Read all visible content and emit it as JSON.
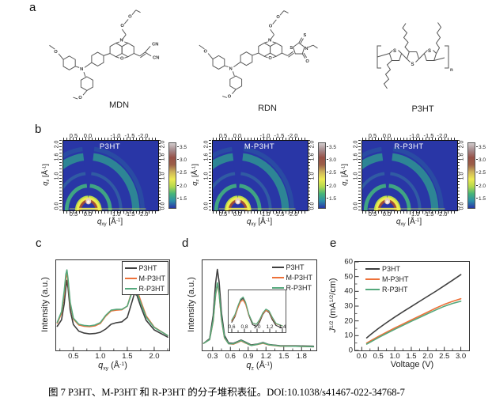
{
  "figure": {
    "panel_labels": [
      "a",
      "b",
      "c",
      "d",
      "e"
    ],
    "caption": "图 7 P3HT、M-P3HT 和 R-P3HT 的分子堆积表征。DOI:10.1038/s41467-022-34768-7"
  },
  "panel_a": {
    "structures": [
      {
        "name": "MDN",
        "atoms": [
          "O",
          "N",
          "O",
          "N",
          "O",
          "O",
          "O",
          "CN",
          "CN"
        ]
      },
      {
        "name": "RDN",
        "atoms": [
          "O",
          "N",
          "O",
          "N",
          "O",
          "O",
          "O",
          "S",
          "S",
          "N",
          "O"
        ]
      },
      {
        "name": "P3HT",
        "atoms": [
          "S",
          "S",
          "S"
        ],
        "repeat": "n"
      }
    ]
  },
  "panel_b": {
    "plots": [
      {
        "title": "P3HT"
      },
      {
        "title": "M-P3HT"
      },
      {
        "title": "R-P3HT"
      }
    ],
    "x_ticks": [
      "0.5",
      "0.0",
      "-1.0",
      "-1.5",
      "-2.0"
    ],
    "y_ticks": [
      "0.0",
      "1.0",
      "1.6",
      "2.0"
    ],
    "colorbar_ticks": [
      "3.5",
      "3.0",
      "2.5",
      "2.0",
      "1.5"
    ],
    "colorbar": {
      "stops": [
        "#2936a6",
        "#2d8fa8",
        "#46b578",
        "#b5d94d",
        "#eeea52",
        "#cdb35a",
        "#9c5f48",
        "#975046",
        "#a5898b",
        "#d2cbcb"
      ]
    },
    "x_axis": {
      "base": "q",
      "sub": "xy",
      "open": " [Å",
      "sup": "-1",
      "close": "]"
    },
    "y_axis": {
      "base": "q",
      "sub": "z",
      "open": " [Å",
      "sup": "-1",
      "close": "]"
    }
  },
  "chart_data": [
    {
      "id": "c",
      "type": "line",
      "ylabel": "Intensity (a.u.)",
      "xlabel_parts": {
        "base": "q",
        "sub": "xy",
        "open": " (Å",
        "sup": "-1",
        "close": ")"
      },
      "xlim": [
        0.18,
        2.28
      ],
      "ylim": [
        0,
        1.12
      ],
      "lw": 1.6,
      "x_ticks": [
        "0.5",
        "1.0",
        "1.5",
        "2.0"
      ],
      "x_minor": [
        0.25,
        0.75,
        1.25,
        1.75,
        2.25
      ],
      "x": [
        0.2,
        0.28,
        0.33,
        0.36,
        0.38,
        0.4,
        0.44,
        0.5,
        0.6,
        0.7,
        0.8,
        0.9,
        1.0,
        1.1,
        1.2,
        1.3,
        1.4,
        1.5,
        1.58,
        1.63,
        1.68,
        1.75,
        1.85,
        2.0,
        2.25
      ],
      "series": [
        {
          "name": "P3HT",
          "color": "#3f3f3f",
          "values": [
            0.3,
            0.38,
            0.58,
            0.78,
            0.87,
            0.78,
            0.5,
            0.32,
            0.24,
            0.215,
            0.205,
            0.21,
            0.225,
            0.265,
            0.325,
            0.345,
            0.355,
            0.41,
            0.585,
            0.7,
            0.685,
            0.545,
            0.375,
            0.255,
            0.165
          ]
        },
        {
          "name": "M-P3HT",
          "color": "#ed7139",
          "values": [
            0.34,
            0.46,
            0.7,
            0.9,
            0.96,
            0.86,
            0.58,
            0.39,
            0.315,
            0.3,
            0.295,
            0.305,
            0.335,
            0.425,
            0.49,
            0.5,
            0.505,
            0.55,
            0.72,
            0.785,
            0.755,
            0.615,
            0.43,
            0.29,
            0.185
          ]
        },
        {
          "name": "R-P3HT",
          "color": "#55a87c",
          "values": [
            0.35,
            0.48,
            0.74,
            0.95,
            1.0,
            0.89,
            0.6,
            0.4,
            0.325,
            0.31,
            0.305,
            0.315,
            0.345,
            0.435,
            0.5,
            0.51,
            0.51,
            0.55,
            0.705,
            0.755,
            0.725,
            0.59,
            0.415,
            0.285,
            0.185
          ]
        }
      ],
      "legend_pos": "top-right"
    },
    {
      "id": "d",
      "type": "line",
      "ylabel": "Intensity (a.u.)",
      "xlabel_parts": {
        "base": "q",
        "sub": "z",
        "open": " (Å",
        "sup": "-1",
        "close": ")"
      },
      "xlim": [
        0.13,
        2.05
      ],
      "ylim": [
        0,
        1.08
      ],
      "lw": 1.6,
      "x_ticks": [
        "0.3",
        "0.6",
        "0.9",
        "1.2",
        "1.5",
        "1.8"
      ],
      "x_minor": [
        0.45,
        0.75,
        1.05,
        1.35,
        1.65,
        1.95
      ],
      "x": [
        0.15,
        0.25,
        0.31,
        0.35,
        0.38,
        0.41,
        0.45,
        0.5,
        0.57,
        0.65,
        0.72,
        0.78,
        0.85,
        0.95,
        1.05,
        1.15,
        1.25,
        1.45,
        1.7,
        2.0
      ],
      "series": [
        {
          "name": "P3HT",
          "color": "#3f3f3f",
          "values": [
            0.085,
            0.14,
            0.42,
            0.8,
            0.97,
            0.82,
            0.45,
            0.18,
            0.09,
            0.085,
            0.105,
            0.125,
            0.1,
            0.065,
            0.075,
            0.095,
            0.07,
            0.055,
            0.055,
            0.05
          ]
        },
        {
          "name": "M-P3HT",
          "color": "#ed7139",
          "values": [
            0.085,
            0.13,
            0.35,
            0.66,
            0.8,
            0.68,
            0.37,
            0.15,
            0.08,
            0.075,
            0.095,
            0.115,
            0.09,
            0.06,
            0.07,
            0.085,
            0.065,
            0.05,
            0.05,
            0.045
          ]
        },
        {
          "name": "R-P3HT",
          "color": "#55a87c",
          "values": [
            0.085,
            0.13,
            0.36,
            0.67,
            0.81,
            0.69,
            0.38,
            0.155,
            0.08,
            0.08,
            0.1,
            0.12,
            0.095,
            0.06,
            0.072,
            0.09,
            0.068,
            0.052,
            0.05,
            0.045
          ]
        }
      ],
      "legend_pos": "top-right"
    },
    {
      "id": "d_inset",
      "type": "line",
      "xlim": [
        0.55,
        1.45
      ],
      "ylim": [
        0,
        1.0
      ],
      "lw": 1.2,
      "x_ticks": [
        "0.6",
        "0.8",
        "1.0",
        "1.2",
        "1.4"
      ],
      "x_minor": [
        0.7,
        0.9,
        1.1,
        1.3
      ],
      "x": [
        0.6,
        0.65,
        0.7,
        0.74,
        0.78,
        0.82,
        0.87,
        0.93,
        0.99,
        1.04,
        1.09,
        1.14,
        1.19,
        1.24,
        1.3,
        1.4
      ],
      "series": [
        {
          "name": "P3HT",
          "color": "#3f3f3f",
          "values": [
            0.24,
            0.37,
            0.6,
            0.76,
            0.81,
            0.68,
            0.4,
            0.18,
            0.14,
            0.24,
            0.42,
            0.52,
            0.47,
            0.3,
            0.16,
            0.1
          ]
        },
        {
          "name": "M-P3HT",
          "color": "#ed7139",
          "values": [
            0.27,
            0.39,
            0.59,
            0.73,
            0.77,
            0.66,
            0.41,
            0.22,
            0.19,
            0.28,
            0.44,
            0.52,
            0.49,
            0.34,
            0.2,
            0.15
          ]
        },
        {
          "name": "R-P3HT",
          "color": "#55a87c",
          "values": [
            0.29,
            0.42,
            0.64,
            0.79,
            0.84,
            0.71,
            0.43,
            0.22,
            0.19,
            0.3,
            0.46,
            0.55,
            0.51,
            0.36,
            0.21,
            0.15
          ]
        }
      ]
    },
    {
      "id": "e",
      "type": "line",
      "ylabel_parts": {
        "j": "J",
        "sup_a": "1/2",
        "mid": " (mA",
        "sup_b": "1/2",
        "end": "/cm)"
      },
      "xlabel": "Voltage (V)",
      "xlim": [
        -0.2,
        3.25
      ],
      "ylim": [
        0,
        60
      ],
      "lw": 1.6,
      "x_ticks": [
        "0.0",
        "0.5",
        "1.0",
        "1.5",
        "2.0",
        "2.5",
        "3.0"
      ],
      "x_minor": [
        0.25,
        0.75,
        1.25,
        1.75,
        2.25,
        2.75
      ],
      "y_ticks": [
        "0",
        "10",
        "20",
        "30",
        "40",
        "50",
        "60"
      ],
      "y_minor": [
        5,
        15,
        25,
        35,
        45,
        55
      ],
      "x": [
        0.15,
        0.3,
        0.5,
        0.75,
        1.0,
        1.25,
        1.5,
        1.75,
        2.0,
        2.25,
        2.5,
        2.75,
        3.0
      ],
      "series": [
        {
          "name": "P3HT",
          "color": "#3f3f3f",
          "values": [
            8.5,
            11.3,
            14.8,
            18.8,
            22.6,
            26.2,
            29.7,
            33.2,
            36.7,
            40.2,
            43.8,
            47.5,
            51.3
          ]
        },
        {
          "name": "M-P3HT",
          "color": "#ed7139",
          "values": [
            5.0,
            6.9,
            9.4,
            12.4,
            15.2,
            17.9,
            20.6,
            23.3,
            26.0,
            28.7,
            31.2,
            33.2,
            35.0
          ]
        },
        {
          "name": "R-P3HT",
          "color": "#55a87c",
          "values": [
            4.3,
            6.1,
            8.6,
            11.5,
            14.3,
            17.0,
            19.7,
            22.3,
            24.9,
            27.5,
            29.9,
            31.8,
            33.3
          ]
        }
      ],
      "legend_pos": "top-left"
    }
  ]
}
